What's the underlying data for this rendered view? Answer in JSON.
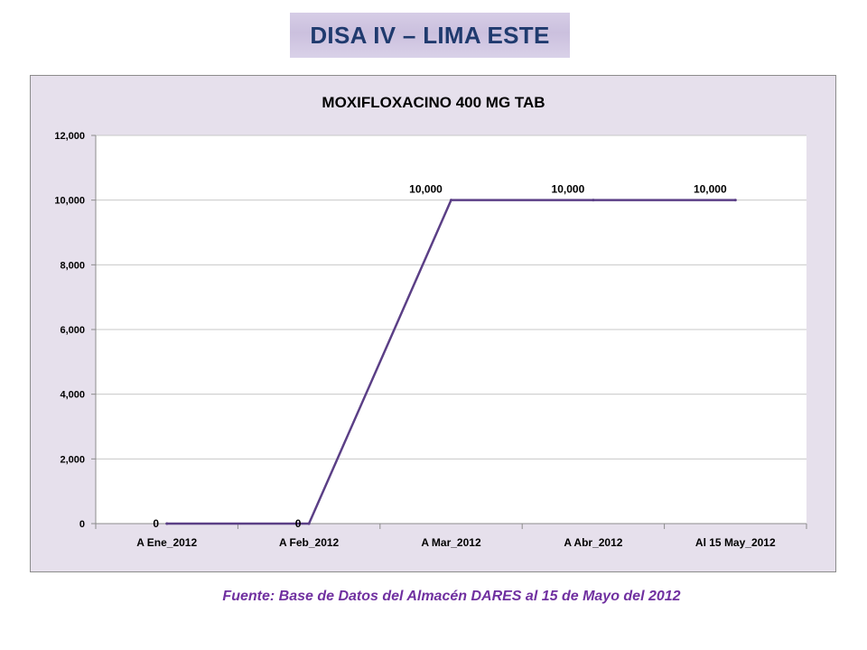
{
  "banner": {
    "title": "DISA IV – LIMA ESTE"
  },
  "chart_data": {
    "type": "line",
    "title": "MOXIFLOXACINO 400 MG TAB",
    "categories": [
      "A Ene_2012",
      "A Feb_2012",
      "A Mar_2012",
      "A Abr_2012",
      "Al 15 May_2012"
    ],
    "series": [
      {
        "values": [
          0,
          0,
          10000,
          10000,
          10000
        ],
        "data_labels": [
          "0",
          "0",
          "10,000",
          "10,000",
          "10,000"
        ]
      }
    ],
    "yticks": [
      "0",
      "2,000",
      "4,000",
      "6,000",
      "8,000",
      "10,000",
      "12,000"
    ],
    "ylim": [
      0,
      12000
    ],
    "xlabel": "",
    "ylabel": "",
    "grid": true,
    "legend": "none",
    "colors": {
      "line": "#5b3f86",
      "plot_bg": "#ffffff",
      "chart_bg": "#e6e0ec",
      "grid": "#c8c8c8"
    }
  },
  "footer": {
    "source": "Fuente: Base de Datos del Almacén DARES al 15 de Mayo del 2012"
  }
}
